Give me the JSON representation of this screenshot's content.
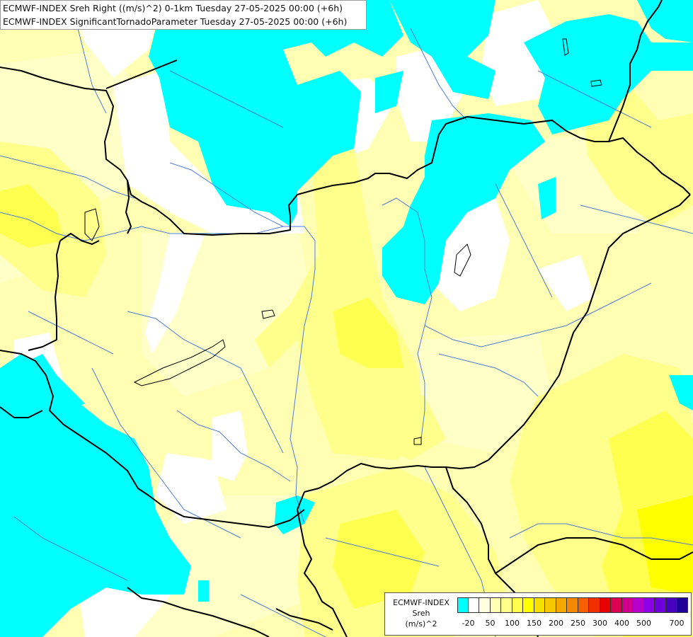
{
  "titles": {
    "line1": "ECMWF-INDEX Sreh Right ((m/s)^2) 0-1km Tuesday 27-05-2025 00:00 (+6h)",
    "line2": "ECMWF-INDEX SignificantTornadoParameter Tuesday 27-05-2025 00:00 (+6h)"
  },
  "legend": {
    "line1": "ECMWF-INDEX",
    "line2": "Sreh",
    "line3": "(m/s)^2",
    "colors": [
      "#00ffff",
      "#ffffff",
      "#ffffe0",
      "#ffffb4",
      "#ffff8c",
      "#ffff50",
      "#ffff00",
      "#f5e000",
      "#f5c800",
      "#f5a800",
      "#f58800",
      "#f56000",
      "#f03000",
      "#e60000",
      "#dc0050",
      "#d2008c",
      "#b400c8",
      "#8c00e6",
      "#6e00dc",
      "#4600be",
      "#1e0096"
    ],
    "ticks": [
      "-20",
      "50",
      "100",
      "150",
      "200",
      "250",
      "300",
      "400",
      "500",
      "700"
    ]
  },
  "colors": {
    "cyan": "#00ffff",
    "white": "#ffffff",
    "pale_yellow": "#ffffb4",
    "light_yellow": "#ffff8c",
    "yellow": "#ffff50",
    "strong_yellow": "#ffff00",
    "border": "#000000",
    "river": "#4c7cd6"
  }
}
